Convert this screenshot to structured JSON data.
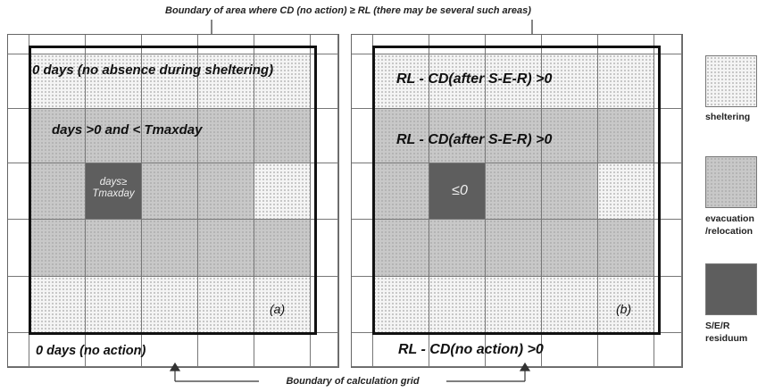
{
  "top_caption": "Boundary of area  where CD (no action) ≥ RL (there may be several such areas)",
  "bottom_caption": "Boundary of calculation grid",
  "panel_a": {
    "top_label": "0 days (no absence during sheltering)",
    "mid_label": "days >0 and < Tmaxday",
    "center_label_1": "days≥",
    "center_label_2": "Tmaxday",
    "tag": "(a)",
    "bottom_label": "0 days (no action)"
  },
  "panel_b": {
    "top_label": "RL - CD(after S-E-R) >0",
    "mid_label": "RL - CD(after S-E-R) >0",
    "center_label": "≤0",
    "tag": "(b)",
    "bottom_label": "RL - CD(no action) >0"
  },
  "legend": {
    "sheltering": "sheltering",
    "evac_1": "evacuation",
    "evac_2": "/relocation",
    "residuum_1": "S/E/R",
    "residuum_2": "residuum"
  },
  "colors": {
    "sheltering": "#f4f4f4",
    "evacuation": "#c8c8c8",
    "residuum": "#5e5e5e",
    "boundary": "#111111"
  }
}
